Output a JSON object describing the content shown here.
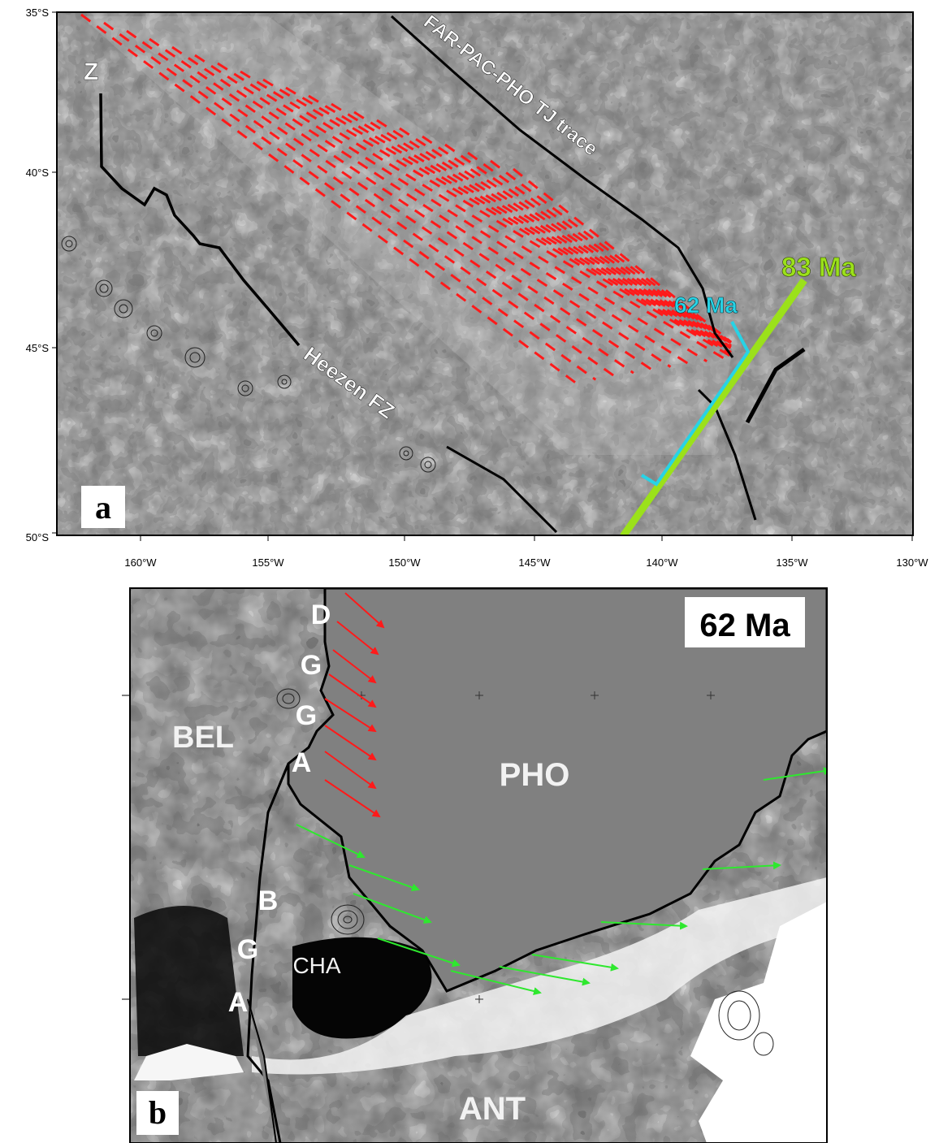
{
  "panel_a": {
    "panel_letter": "a",
    "lat_ticks": [
      "35°S",
      "40°S",
      "45°S",
      "50°S"
    ],
    "lon_ticks": [
      "160°W",
      "155°W",
      "150°W",
      "145°W",
      "140°W",
      "135°W",
      "130°W"
    ],
    "labels": {
      "z": "Z",
      "trace": "FAR-PAC-PHO TJ trace",
      "heezen": "Heezen FZ",
      "ma83": "83 Ma",
      "ma62": "62 Ma"
    },
    "colors": {
      "isochron_83": "#9be11a",
      "isochron_62": "#27d3e6",
      "lineation": "#ff1a1a"
    }
  },
  "panel_b": {
    "panel_letter": "b",
    "age": "62 Ma",
    "plates": {
      "pho": "PHO",
      "bel": "BEL",
      "cha": "CHA",
      "ant": "ANT"
    },
    "letters_upper": [
      "D",
      "G",
      "G",
      "A"
    ],
    "letters_lower": [
      "B",
      "G",
      "A"
    ],
    "colors": {
      "pho_fill": "#808080",
      "red_arrow": "#ff1a1a",
      "green_arrow": "#2ee82e"
    }
  }
}
